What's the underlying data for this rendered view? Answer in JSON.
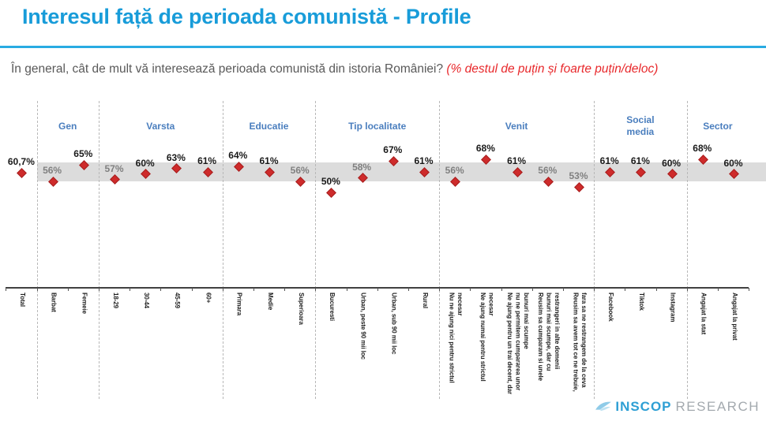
{
  "header": {
    "title": "Interesul față de perioada comunistă - Profile",
    "question": "În general, cât de mult vă interesează perioada comunistă din istoria României? ",
    "question_highlight": "(% destul de puțin și foarte puțin/deloc)"
  },
  "logo": {
    "name": "INSCOP",
    "suffix": "RESEARCH"
  },
  "colors": {
    "title_blue": "#189CD9",
    "rule_blue": "#29ABE2",
    "question_gray": "#595959",
    "question_red": "#E8282B",
    "marker": "#CE2B2B",
    "marker_border": "#A61E1E",
    "band": "#DCDCDC",
    "label": "#1A1A1A",
    "label_muted": "#808080",
    "group_label": "#4A7EBE",
    "separator": "#B8B8B8",
    "axis": "#404040",
    "logo_blue": "#2E9FD4",
    "logo_gray": "#A3A9AE",
    "logo_bird": "#8FCBE8"
  },
  "chart_data": {
    "type": "scatter",
    "title": "Interesul față de perioada comunistă - Profile",
    "unit": "%",
    "band": {
      "min": 55.7,
      "max": 65.7
    },
    "groups": [
      {
        "name": "",
        "categories": [
          {
            "label": "Total",
            "value": 60.7,
            "display": "60,7%",
            "muted": false
          }
        ]
      },
      {
        "name": "Gen",
        "categories": [
          {
            "label": "Barbat",
            "value": 56,
            "display": "56%",
            "muted": true
          },
          {
            "label": "Femeie",
            "value": 65,
            "display": "65%",
            "muted": false
          }
        ]
      },
      {
        "name": "Varsta",
        "categories": [
          {
            "label": "18-29",
            "value": 57,
            "display": "57%",
            "muted": true
          },
          {
            "label": "30-44",
            "value": 60,
            "display": "60%",
            "muted": false
          },
          {
            "label": "45-59",
            "value": 63,
            "display": "63%",
            "muted": false
          },
          {
            "label": "60+",
            "value": 61,
            "display": "61%",
            "muted": false
          }
        ]
      },
      {
        "name": "Educatie",
        "categories": [
          {
            "label": "Primara",
            "value": 64,
            "display": "64%",
            "muted": false
          },
          {
            "label": "Medie",
            "value": 61,
            "display": "61%",
            "muted": false
          },
          {
            "label": "Superioara",
            "value": 56,
            "display": "56%",
            "muted": true
          }
        ]
      },
      {
        "name": "Tip localitate",
        "categories": [
          {
            "label": "Bucuresti",
            "value": 50,
            "display": "50%",
            "muted": false
          },
          {
            "label": "Urban, peste 90 mii loc",
            "value": 58,
            "display": "58%",
            "muted": true
          },
          {
            "label": "Urban, sub 90 mii loc",
            "value": 67,
            "display": "67%",
            "muted": false
          },
          {
            "label": "Rural",
            "value": 61,
            "display": "61%",
            "muted": false
          }
        ]
      },
      {
        "name": "Venit",
        "categories": [
          {
            "label": "Nu ne ajung nici pentru strictul\nnecesar",
            "value": 56,
            "display": "56%",
            "muted": true
          },
          {
            "label": "Ne ajung numai pentru strictul\nnecesar",
            "value": 68,
            "display": "68%",
            "muted": false
          },
          {
            "label": "Ne ajung pentru un trai decent, dar\nnu ne permitem cumpararea unor\nbunuri mai scumpe",
            "value": 61,
            "display": "61%",
            "muted": false
          },
          {
            "label": "Reusim sa cumparam si unele\nbunuri mai scumpe, dar cu\nrestrangeri in alte domenii",
            "value": 56,
            "display": "56%",
            "muted": true
          },
          {
            "label": "Reusim sa avem tot ce ne trebuie,\nfara sa ne restrangem de la ceva",
            "value": 53,
            "display": "53%",
            "muted": true
          }
        ]
      },
      {
        "name": "Social\nmedia",
        "categories": [
          {
            "label": "Facebook",
            "value": 61,
            "display": "61%",
            "muted": false
          },
          {
            "label": "Tiktok",
            "value": 61,
            "display": "61%",
            "muted": false
          },
          {
            "label": "Instagram",
            "value": 60,
            "display": "60%",
            "muted": false
          }
        ]
      },
      {
        "name": "Sector",
        "categories": [
          {
            "label": "Angajat la stat",
            "value": 68,
            "display": "68%",
            "muted": false
          },
          {
            "label": "Angajat la privat",
            "value": 60,
            "display": "60%",
            "muted": false
          }
        ]
      }
    ]
  }
}
